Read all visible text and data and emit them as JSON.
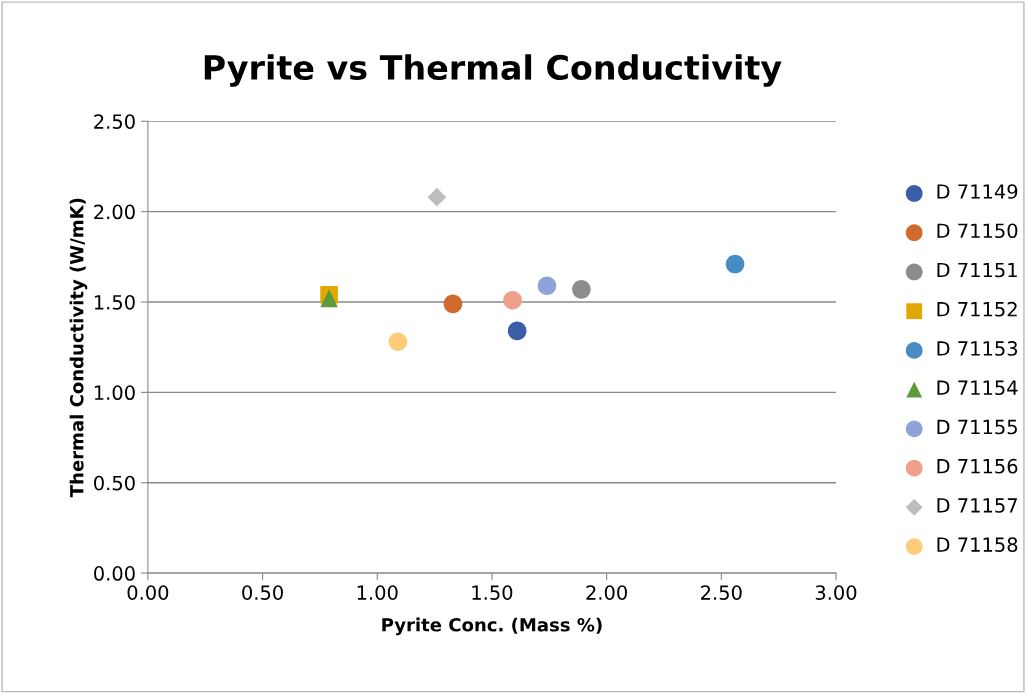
{
  "chart_data": {
    "type": "scatter",
    "title": "Pyrite vs Thermal Conductivity",
    "xlabel": "Pyrite Conc. (Mass %)",
    "ylabel": "Thermal Conductivity (W/mK)",
    "xlim": [
      0,
      3
    ],
    "xticks": [
      {
        "value": 0,
        "label": "0.00"
      },
      {
        "value": 0.5,
        "label": "0.50"
      },
      {
        "value": 1,
        "label": "1.00"
      },
      {
        "value": 1.5,
        "label": "1.50"
      },
      {
        "value": 2,
        "label": "2.00"
      },
      {
        "value": 2.5,
        "label": "2.50"
      },
      {
        "value": 3,
        "label": "3.00"
      }
    ],
    "ylim": [
      0,
      2.5
    ],
    "yticks": [
      {
        "value": 0,
        "label": "0.00"
      },
      {
        "value": 0.5,
        "label": "0.50"
      },
      {
        "value": 1,
        "label": "1.00"
      },
      {
        "value": 1.5,
        "label": "1.50"
      },
      {
        "value": 2,
        "label": "2.00"
      },
      {
        "value": 2.5,
        "label": "2.50"
      }
    ],
    "grid": "y",
    "legend": "right",
    "marker": "circle",
    "series": [
      {
        "name": "D 71149",
        "color": "#3a5ea8",
        "x": [
          1.61
        ],
        "values": [
          1.34
        ]
      },
      {
        "name": "D 71150",
        "color": "#d06b2b",
        "x": [
          1.33
        ],
        "values": [
          1.49
        ]
      },
      {
        "name": "D 71151",
        "color": "#8c8c8c",
        "x": [
          1.89
        ],
        "values": [
          1.57
        ]
      },
      {
        "name": "D 71152",
        "color": "#e0a800",
        "marker": "square",
        "x": [
          0.79
        ],
        "values": [
          1.54
        ]
      },
      {
        "name": "D 71153",
        "color": "#4a8bc4",
        "x": [
          2.56
        ],
        "values": [
          1.71
        ]
      },
      {
        "name": "D 71154",
        "color": "#5f9a3a",
        "marker": "triangle",
        "x": [
          0.79
        ],
        "values": [
          1.52
        ]
      },
      {
        "name": "D 71155",
        "color": "#8ea4d8",
        "x": [
          1.74
        ],
        "values": [
          1.59
        ]
      },
      {
        "name": "D 71156",
        "color": "#f0a08a",
        "x": [
          1.59
        ],
        "values": [
          1.51
        ]
      },
      {
        "name": "D 71157",
        "color": "#bdbdbd",
        "marker": "diamond",
        "x": [
          1.26
        ],
        "values": [
          2.08
        ]
      },
      {
        "name": "D 71158",
        "color": "#ffcc7a",
        "x": [
          1.09
        ],
        "values": [
          1.28
        ]
      }
    ]
  }
}
